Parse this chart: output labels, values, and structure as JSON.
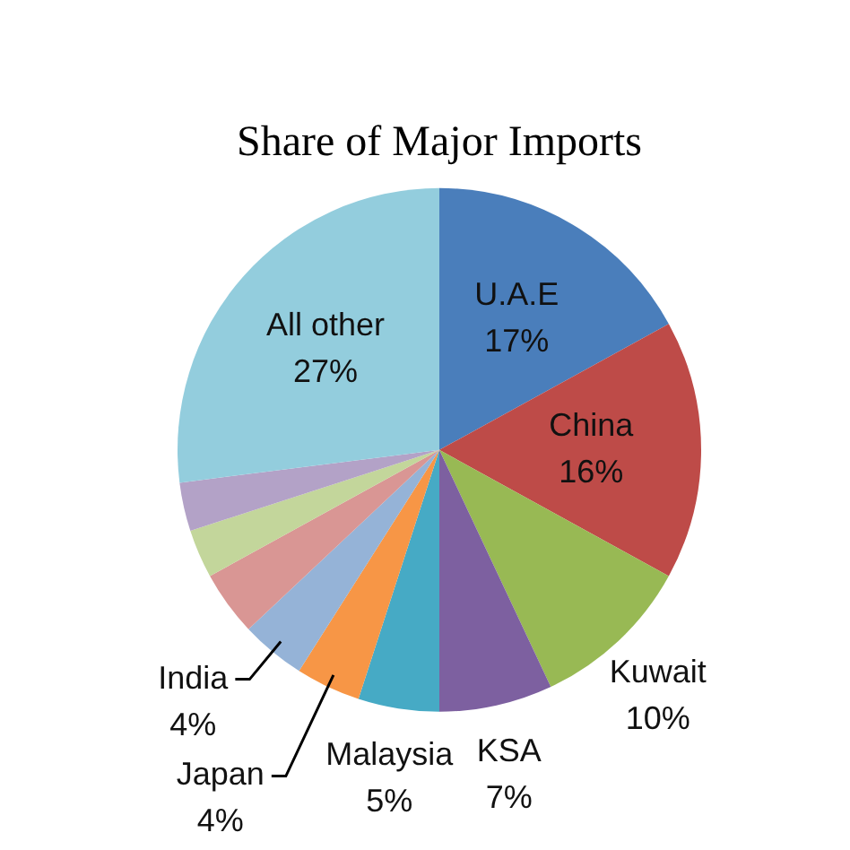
{
  "chart_data": {
    "type": "pie",
    "title": "Share of Major Imports",
    "categories": [
      "U.A.E",
      "China",
      "Kuwait",
      "KSA",
      "Malaysia",
      "Japan",
      "India",
      null,
      null,
      null,
      "All other"
    ],
    "values": [
      17,
      16,
      10,
      7,
      5,
      4,
      4,
      4,
      3,
      3,
      27
    ],
    "value_labels": [
      "17%",
      "16%",
      "10%",
      "7%",
      "5%",
      "4%",
      "4%",
      null,
      null,
      null,
      "27%"
    ],
    "colors": [
      "#4a7ebb",
      "#be4b48",
      "#98b954",
      "#7d60a0",
      "#46aac5",
      "#f79646",
      "#95b3d7",
      "#d99694",
      "#c3d69b",
      "#b3a2c7",
      "#93cddd"
    ],
    "legend": false
  }
}
